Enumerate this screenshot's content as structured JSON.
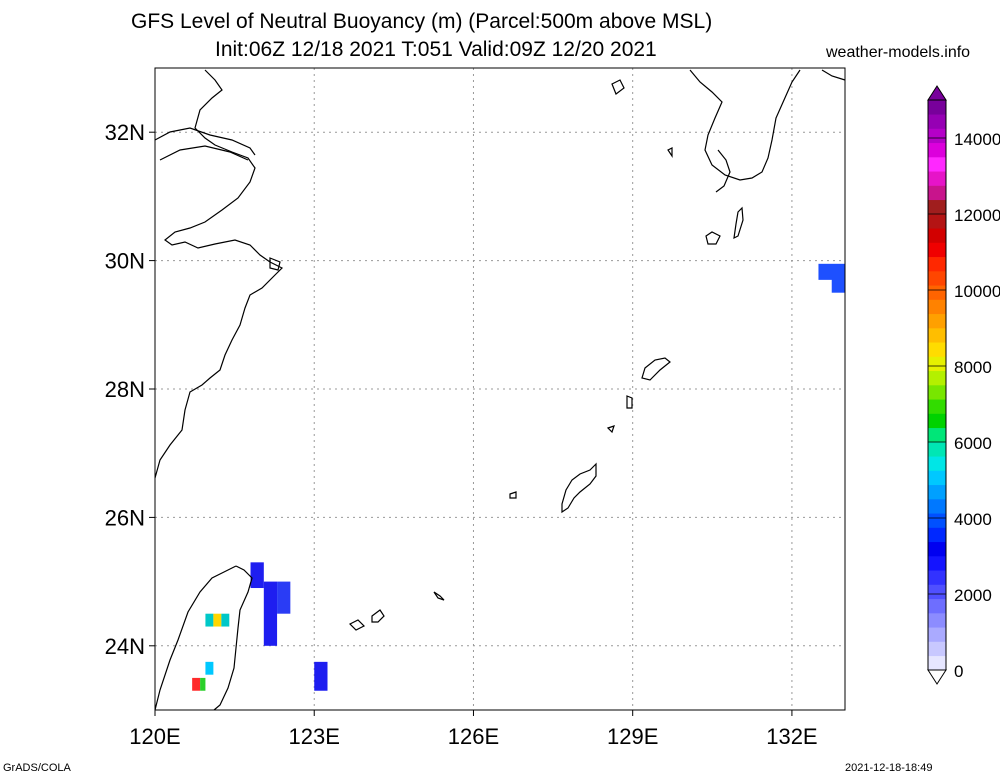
{
  "title_line1": "GFS Level of Neutral Buoyancy (m) (Parcel:500m above MSL)",
  "title_line2": "Init:06Z 12/18 2021 T:051 Valid:09Z 12/20 2021",
  "site": "weather-models.info",
  "footer_left": "GrADS/COLA",
  "footer_right": "2021-12-18-18:49",
  "map": {
    "lon_range": [
      120,
      133
    ],
    "lat_range": [
      23,
      33
    ],
    "lon_ticks": [
      {
        "value": 120,
        "label": "120E"
      },
      {
        "value": 123,
        "label": "123E"
      },
      {
        "value": 126,
        "label": "126E"
      },
      {
        "value": 129,
        "label": "129E"
      },
      {
        "value": 132,
        "label": "132E"
      }
    ],
    "lat_ticks": [
      {
        "value": 24,
        "label": "24N"
      },
      {
        "value": 26,
        "label": "26N"
      },
      {
        "value": 28,
        "label": "28N"
      },
      {
        "value": 30,
        "label": "30N"
      },
      {
        "value": 32,
        "label": "32N"
      }
    ],
    "grid": true,
    "patches": [
      {
        "lon0": 121.8,
        "lon1": 122.05,
        "lat0": 24.9,
        "lat1": 25.3,
        "color": "#1e1ef0"
      },
      {
        "lon0": 122.05,
        "lon1": 122.3,
        "lat0": 24.0,
        "lat1": 25.0,
        "color": "#1e1ef0"
      },
      {
        "lon0": 122.3,
        "lon1": 122.55,
        "lat0": 24.5,
        "lat1": 25.0,
        "color": "#2a3cf5"
      },
      {
        "lon0": 123.0,
        "lon1": 123.25,
        "lat0": 23.3,
        "lat1": 23.75,
        "color": "#1e1ef0"
      },
      {
        "lon0": 132.5,
        "lon1": 133.0,
        "lat0": 29.7,
        "lat1": 29.95,
        "color": "#1e50ff"
      },
      {
        "lon0": 132.75,
        "lon1": 133.0,
        "lat0": 29.5,
        "lat1": 29.8,
        "color": "#1e50ff"
      },
      {
        "lon0": 120.95,
        "lon1": 121.1,
        "lat0": 24.3,
        "lat1": 24.5,
        "color": "#00c8c8"
      },
      {
        "lon0": 121.1,
        "lon1": 121.25,
        "lat0": 24.3,
        "lat1": 24.5,
        "color": "#ffd700"
      },
      {
        "lon0": 121.25,
        "lon1": 121.4,
        "lat0": 24.3,
        "lat1": 24.5,
        "color": "#00c8c8"
      },
      {
        "lon0": 120.95,
        "lon1": 121.1,
        "lat0": 23.55,
        "lat1": 23.75,
        "color": "#00c8ff"
      },
      {
        "lon0": 120.7,
        "lon1": 120.85,
        "lat0": 23.3,
        "lat1": 23.5,
        "color": "#ff2a2a"
      },
      {
        "lon0": 120.85,
        "lon1": 120.95,
        "lat0": 23.3,
        "lat1": 23.5,
        "color": "#2ad02a"
      }
    ]
  },
  "colorbar": {
    "min": 0,
    "max": 15000,
    "labels": [
      {
        "value": 0,
        "label": "0"
      },
      {
        "value": 2000,
        "label": "2000"
      },
      {
        "value": 4000,
        "label": "4000"
      },
      {
        "value": 6000,
        "label": "6000"
      },
      {
        "value": 8000,
        "label": "8000"
      },
      {
        "value": 10000,
        "label": "10000"
      },
      {
        "value": 12000,
        "label": "12000"
      },
      {
        "value": 14000,
        "label": "14000"
      }
    ],
    "colors": [
      "#e6e6ff",
      "#c8c8ff",
      "#aaaaff",
      "#8c8cff",
      "#6e6eff",
      "#5050ff",
      "#3232ff",
      "#1414ff",
      "#0000f0",
      "#0028ff",
      "#0050ff",
      "#0078ff",
      "#00a0ff",
      "#00c8ff",
      "#00e6e6",
      "#00e6b4",
      "#00e678",
      "#00d200",
      "#32dc00",
      "#78e600",
      "#b4f000",
      "#e6f000",
      "#ffdc00",
      "#ffbe00",
      "#ffa000",
      "#ff8200",
      "#ff6400",
      "#ff4600",
      "#ff2800",
      "#f00000",
      "#d20000",
      "#b41414",
      "#a01e1e",
      "#c8148c",
      "#e614c8",
      "#ff28ff",
      "#dc00dc",
      "#b400c8",
      "#9600b4",
      "#78009b"
    ]
  }
}
